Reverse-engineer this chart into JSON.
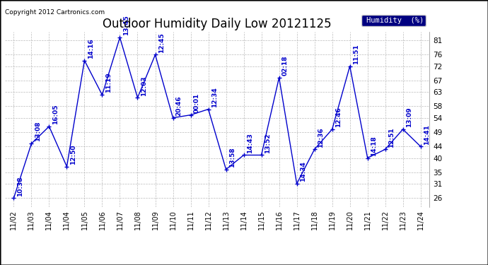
{
  "title": "Outdoor Humidity Daily Low 20121125",
  "copyright": "Copyright 2012 Cartronics.com",
  "legend_label": "Humidity  (%)",
  "x_labels": [
    "11/02",
    "11/03",
    "11/04",
    "11/04",
    "11/05",
    "11/06",
    "11/07",
    "11/08",
    "11/09",
    "11/10",
    "11/11",
    "11/12",
    "11/13",
    "11/14",
    "11/15",
    "11/16",
    "11/17",
    "11/18",
    "11/19",
    "11/20",
    "11/21",
    "11/22",
    "11/23",
    "11/24"
  ],
  "y_values": [
    26,
    45,
    51,
    37,
    74,
    62,
    82,
    61,
    76,
    54,
    55,
    57,
    36,
    41,
    41,
    68,
    31,
    43,
    50,
    72,
    40,
    43,
    50,
    44
  ],
  "point_labels": [
    "10:38",
    "13:08",
    "16:05",
    "12:50",
    "14:16",
    "11:19",
    "13:45",
    "12:03",
    "12:45",
    "20:46",
    "00:01",
    "12:34",
    "13:58",
    "14:43",
    "13:52",
    "02:18",
    "14:34",
    "12:36",
    "12:46",
    "11:51",
    "14:18",
    "12:51",
    "13:09",
    "14:41"
  ],
  "ylim": [
    23,
    84
  ],
  "yticks": [
    26,
    31,
    35,
    40,
    44,
    49,
    54,
    58,
    63,
    67,
    72,
    76,
    81
  ],
  "line_color": "#0000cc",
  "marker_color": "#0000cc",
  "background_color": "#ffffff",
  "grid_color": "#bbbbbb",
  "title_fontsize": 12,
  "label_fontsize": 7.5,
  "fig_width": 6.9,
  "fig_height": 3.75,
  "dpi": 100
}
